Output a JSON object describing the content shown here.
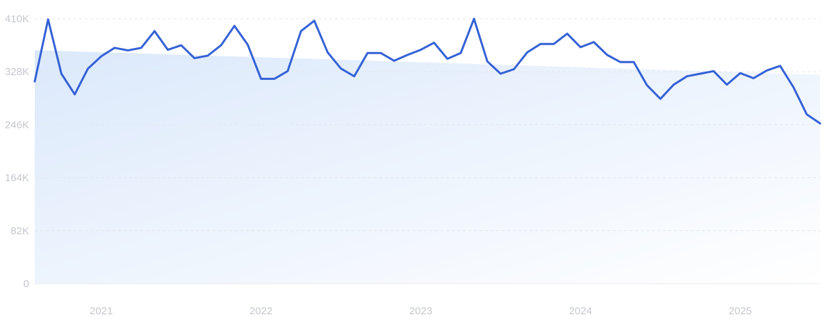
{
  "chart_data": {
    "type": "line",
    "title": "",
    "xlabel": "",
    "ylabel": "",
    "x_range": [
      "2020-08",
      "2025-07"
    ],
    "ylim": [
      0,
      410000
    ],
    "y_ticks": [
      {
        "value": 0,
        "label": "0"
      },
      {
        "value": 82000,
        "label": "82K"
      },
      {
        "value": 164000,
        "label": "164K"
      },
      {
        "value": 246000,
        "label": "246K"
      },
      {
        "value": 328000,
        "label": "328K"
      },
      {
        "value": 410000,
        "label": "410K"
      }
    ],
    "x_ticks": [
      {
        "value": "2021-01",
        "label": "2021"
      },
      {
        "value": "2022-01",
        "label": "2022"
      },
      {
        "value": "2023-01",
        "label": "2023"
      },
      {
        "value": "2024-01",
        "label": "2024"
      },
      {
        "value": "2025-01",
        "label": "2025"
      }
    ],
    "grid": true,
    "legend": "none",
    "series": [
      {
        "color": "#3461d6",
        "area_color": "#dbe9fb",
        "x": [
          "2020-08",
          "2020-09",
          "2020-10",
          "2020-11",
          "2020-12",
          "2021-01",
          "2021-02",
          "2021-03",
          "2021-04",
          "2021-05",
          "2021-06",
          "2021-07",
          "2021-08",
          "2021-09",
          "2021-10",
          "2021-11",
          "2021-12",
          "2022-01",
          "2022-02",
          "2022-03",
          "2022-04",
          "2022-05",
          "2022-06",
          "2022-07",
          "2022-08",
          "2022-09",
          "2022-10",
          "2022-11",
          "2022-12",
          "2023-01",
          "2023-02",
          "2023-03",
          "2023-04",
          "2023-05",
          "2023-06",
          "2023-07",
          "2023-08",
          "2023-09",
          "2023-10",
          "2023-11",
          "2023-12",
          "2024-01",
          "2024-02",
          "2024-03",
          "2024-04",
          "2024-05",
          "2024-06",
          "2024-07",
          "2024-08",
          "2024-09",
          "2024-10",
          "2024-11",
          "2024-12",
          "2025-01",
          "2025-02",
          "2025-03",
          "2025-04",
          "2025-05",
          "2025-06",
          "2025-07"
        ],
        "values": [
          313000,
          409000,
          325000,
          293000,
          333000,
          352000,
          365000,
          361000,
          365000,
          391000,
          362000,
          369000,
          349000,
          353000,
          369000,
          399000,
          370000,
          317000,
          317000,
          329000,
          391000,
          407000,
          358000,
          333000,
          321000,
          357000,
          357000,
          345000,
          354000,
          362000,
          373000,
          348000,
          357000,
          410000,
          344000,
          325000,
          332000,
          358000,
          371000,
          371000,
          387000,
          366000,
          374000,
          354000,
          343000,
          343000,
          307000,
          286000,
          308000,
          321000,
          325000,
          329000,
          308000,
          326000,
          318000,
          330000,
          337000,
          304000,
          262000,
          248000
        ]
      }
    ]
  }
}
